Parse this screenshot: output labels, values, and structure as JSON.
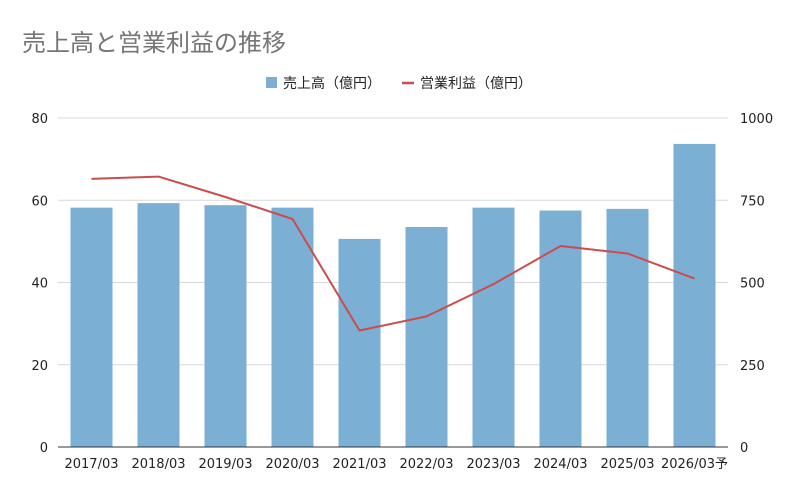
{
  "chart_data": {
    "type": "bar+line",
    "title": "売上高と営業利益の推移",
    "categories": [
      "2017/03",
      "2018/03",
      "2019/03",
      "2020/03",
      "2021/03",
      "2022/03",
      "2023/03",
      "2024/03",
      "2025/03",
      "2026/03予"
    ],
    "series": [
      {
        "name": "売上高（億円）",
        "type": "bar",
        "axis": "left",
        "color": "#7bafd4",
        "values": [
          58.2,
          59.3,
          58.8,
          58.2,
          50.6,
          53.5,
          58.2,
          57.5,
          57.9,
          73.7
        ]
      },
      {
        "name": "営業利益（億円）",
        "type": "line",
        "axis": "right",
        "color": "#cc4c4c",
        "values": [
          815,
          822,
          760,
          693,
          354,
          397,
          495,
          611,
          588,
          512
        ]
      }
    ],
    "left_axis": {
      "min": 0,
      "max": 80,
      "ticks": [
        "0",
        "20",
        "40",
        "60",
        "80"
      ]
    },
    "right_axis": {
      "min": 0,
      "max": 1000,
      "ticks": [
        "0",
        "250",
        "500",
        "750",
        "1000"
      ]
    },
    "legend_position": "top-center",
    "grid": true
  }
}
